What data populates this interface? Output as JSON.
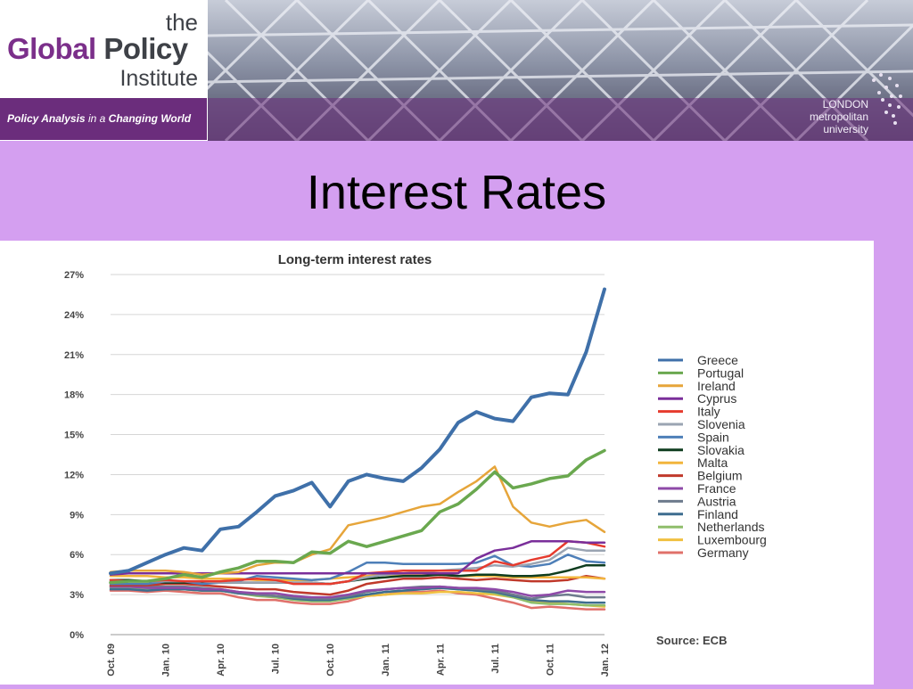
{
  "header": {
    "logo_the": "the",
    "logo_global": "Global",
    "logo_policy": "Policy",
    "logo_institute": "Institute",
    "tagline_policy_analysis": "Policy Analysis",
    "tagline_in_a": "in a",
    "tagline_changing_world": "Changing World",
    "university_lines": [
      "LONDON",
      "metropolitan",
      "university"
    ]
  },
  "slide": {
    "title": "Interest Rates"
  },
  "colors": {
    "background": "#d49ff0",
    "tagline_bar": "#6b2d7c"
  },
  "chart_data": {
    "type": "line",
    "title": "Long-term interest rates",
    "source": "Source: ECB",
    "ylim": [
      0,
      27
    ],
    "yticks": [
      0,
      3,
      6,
      9,
      12,
      15,
      18,
      21,
      24,
      27
    ],
    "ytick_labels": [
      "0%",
      "3%",
      "6%",
      "9%",
      "12%",
      "15%",
      "18%",
      "21%",
      "24%",
      "27%"
    ],
    "x": [
      "Oct. 09",
      "Nov. 09",
      "Dec. 09",
      "Jan. 10",
      "Feb. 10",
      "Mar. 10",
      "Apr. 10",
      "May 10",
      "Jun. 10",
      "Jul. 10",
      "Aug. 10",
      "Sep. 10",
      "Oct. 10",
      "Nov. 10",
      "Dec. 10",
      "Jan. 11",
      "Feb. 11",
      "Mar. 11",
      "Apr. 11",
      "May 11",
      "Jun. 11",
      "Jul. 11",
      "Aug. 11",
      "Sep. 11",
      "Oct. 11",
      "Nov. 11",
      "Dec. 11",
      "Jan. 12"
    ],
    "xtick_labels": [
      "Oct. 09",
      "Jan. 10",
      "Apr. 10",
      "Jul. 10",
      "Oct. 10",
      "Jan. 11",
      "Apr. 11",
      "Jul. 11",
      "Oct. 11",
      "Jan. 12"
    ],
    "xtick_index": [
      0,
      3,
      6,
      9,
      12,
      15,
      18,
      21,
      24,
      27
    ],
    "grid": true,
    "legend_position": "right",
    "series": [
      {
        "name": "Greece",
        "color": "#3f70a9",
        "values": [
          4.6,
          4.8,
          5.4,
          6.0,
          6.5,
          6.3,
          7.9,
          8.1,
          9.2,
          10.4,
          10.8,
          11.4,
          9.6,
          11.5,
          12.0,
          11.7,
          11.5,
          12.5,
          13.9,
          15.9,
          16.7,
          16.2,
          16.0,
          17.8,
          18.1,
          18.0,
          21.2,
          25.9
        ]
      },
      {
        "name": "Portugal",
        "color": "#6aa84f",
        "values": [
          3.9,
          4.0,
          4.0,
          4.2,
          4.5,
          4.3,
          4.7,
          5.0,
          5.5,
          5.5,
          5.4,
          6.2,
          6.1,
          7.0,
          6.6,
          7.0,
          7.4,
          7.8,
          9.2,
          9.8,
          10.9,
          12.2,
          11.0,
          11.3,
          11.7,
          11.9,
          13.1,
          13.8
        ]
      },
      {
        "name": "Ireland",
        "color": "#e6a53a",
        "values": [
          4.7,
          4.8,
          4.8,
          4.8,
          4.7,
          4.5,
          4.6,
          4.7,
          5.2,
          5.4,
          5.4,
          6.0,
          6.4,
          8.2,
          8.5,
          8.8,
          9.2,
          9.6,
          9.8,
          10.7,
          11.5,
          12.6,
          9.6,
          8.4,
          8.1,
          8.4,
          8.6,
          7.7
        ]
      },
      {
        "name": "Cyprus",
        "color": "#7a2f9a",
        "values": [
          4.5,
          4.6,
          4.6,
          4.6,
          4.6,
          4.6,
          4.6,
          4.6,
          4.6,
          4.6,
          4.6,
          4.6,
          4.6,
          4.6,
          4.6,
          4.6,
          4.6,
          4.6,
          4.6,
          4.6,
          5.7,
          6.3,
          6.5,
          7.0,
          7.0,
          7.0,
          6.9,
          6.9
        ]
      },
      {
        "name": "Italy",
        "color": "#e63b2e",
        "values": [
          4.1,
          4.0,
          4.0,
          4.1,
          4.0,
          4.0,
          4.0,
          4.1,
          4.2,
          4.1,
          3.8,
          3.8,
          3.8,
          4.0,
          4.6,
          4.7,
          4.8,
          4.8,
          4.8,
          4.8,
          4.8,
          5.5,
          5.2,
          5.6,
          5.9,
          7.0,
          6.9,
          6.6
        ]
      },
      {
        "name": "Slovenia",
        "color": "#9aa4b2",
        "values": [
          4.0,
          4.0,
          4.0,
          4.0,
          4.0,
          4.0,
          3.9,
          3.9,
          3.9,
          3.9,
          3.9,
          3.9,
          3.8,
          4.0,
          4.3,
          4.5,
          4.6,
          4.7,
          4.8,
          4.9,
          5.0,
          5.2,
          5.1,
          5.3,
          5.6,
          6.5,
          6.3,
          6.3
        ]
      },
      {
        "name": "Spain",
        "color": "#4e7fb8",
        "values": [
          3.8,
          3.8,
          3.8,
          4.0,
          4.0,
          3.8,
          3.9,
          4.0,
          4.4,
          4.3,
          4.2,
          4.1,
          4.2,
          4.7,
          5.4,
          5.4,
          5.3,
          5.3,
          5.3,
          5.3,
          5.4,
          5.9,
          5.2,
          5.1,
          5.3,
          6.0,
          5.5,
          5.4
        ]
      },
      {
        "name": "Slovakia",
        "color": "#0f3d1f",
        "values": [
          4.1,
          4.1,
          4.0,
          3.9,
          3.9,
          3.9,
          3.9,
          3.9,
          3.9,
          3.9,
          3.9,
          3.9,
          3.8,
          4.0,
          4.2,
          4.3,
          4.4,
          4.4,
          4.5,
          4.4,
          4.5,
          4.5,
          4.4,
          4.4,
          4.5,
          4.8,
          5.2,
          5.2
        ]
      },
      {
        "name": "Malta",
        "color": "#f2b53c",
        "values": [
          4.4,
          4.4,
          4.4,
          4.3,
          4.3,
          4.2,
          4.2,
          4.2,
          4.1,
          4.1,
          4.1,
          4.1,
          4.2,
          4.3,
          4.4,
          4.5,
          4.5,
          4.5,
          4.5,
          4.4,
          4.4,
          4.4,
          4.3,
          4.3,
          4.3,
          4.3,
          4.3,
          4.2
        ]
      },
      {
        "name": "Belgium",
        "color": "#c0392b",
        "values": [
          3.7,
          3.7,
          3.7,
          3.8,
          3.8,
          3.7,
          3.6,
          3.5,
          3.4,
          3.4,
          3.2,
          3.1,
          3.0,
          3.3,
          3.8,
          4.0,
          4.2,
          4.2,
          4.3,
          4.2,
          4.1,
          4.2,
          4.1,
          4.0,
          4.0,
          4.1,
          4.4,
          4.2
        ]
      },
      {
        "name": "France",
        "color": "#8e4aa8",
        "values": [
          3.6,
          3.6,
          3.5,
          3.5,
          3.5,
          3.4,
          3.4,
          3.2,
          3.1,
          3.1,
          2.9,
          2.8,
          2.8,
          3.0,
          3.3,
          3.4,
          3.5,
          3.5,
          3.6,
          3.5,
          3.5,
          3.4,
          3.2,
          2.9,
          3.0,
          3.3,
          3.2,
          3.2
        ]
      },
      {
        "name": "Austria",
        "color": "#6d7b8d",
        "values": [
          3.6,
          3.6,
          3.6,
          3.6,
          3.6,
          3.5,
          3.4,
          3.2,
          3.0,
          2.9,
          2.8,
          2.7,
          2.7,
          2.9,
          3.2,
          3.4,
          3.5,
          3.6,
          3.6,
          3.5,
          3.4,
          3.3,
          3.0,
          2.7,
          2.9,
          3.0,
          2.8,
          2.8
        ]
      },
      {
        "name": "Finland",
        "color": "#3d6d8f",
        "values": [
          3.4,
          3.4,
          3.3,
          3.4,
          3.4,
          3.3,
          3.3,
          3.1,
          3.0,
          2.9,
          2.7,
          2.6,
          2.6,
          2.8,
          3.0,
          3.2,
          3.3,
          3.4,
          3.5,
          3.4,
          3.3,
          3.2,
          2.9,
          2.6,
          2.5,
          2.5,
          2.4,
          2.4
        ]
      },
      {
        "name": "Netherlands",
        "color": "#8fbe6b",
        "values": [
          3.5,
          3.5,
          3.4,
          3.4,
          3.4,
          3.3,
          3.3,
          3.1,
          2.9,
          2.8,
          2.6,
          2.5,
          2.5,
          2.7,
          3.0,
          3.2,
          3.3,
          3.4,
          3.5,
          3.4,
          3.3,
          3.1,
          2.8,
          2.4,
          2.3,
          2.3,
          2.2,
          2.2
        ]
      },
      {
        "name": "Luxembourg",
        "color": "#f0c040",
        "values": [
          3.6,
          3.6,
          3.5,
          3.4,
          3.4,
          3.3,
          3.3,
          3.1,
          3.0,
          2.9,
          2.8,
          2.7,
          2.6,
          2.7,
          2.9,
          3.0,
          3.1,
          3.1,
          3.2,
          3.2,
          3.1,
          3.0,
          2.8,
          2.5,
          2.4,
          2.3,
          2.2,
          2.1
        ]
      },
      {
        "name": "Germany",
        "color": "#e0706a",
        "values": [
          3.3,
          3.3,
          3.2,
          3.3,
          3.2,
          3.1,
          3.1,
          2.8,
          2.6,
          2.6,
          2.4,
          2.3,
          2.3,
          2.5,
          2.9,
          3.0,
          3.2,
          3.2,
          3.3,
          3.1,
          3.0,
          2.7,
          2.4,
          2.0,
          2.1,
          2.0,
          1.9,
          1.9
        ]
      }
    ]
  }
}
